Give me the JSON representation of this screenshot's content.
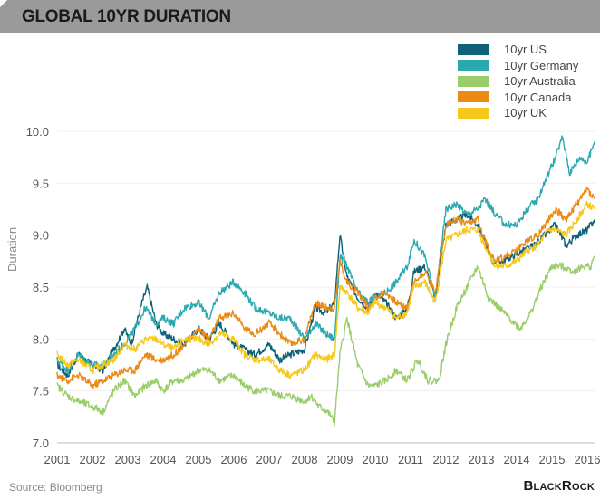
{
  "header": {
    "title": "GLOBAL 10YR DURATION"
  },
  "footer": {
    "source": "Source: Bloomberg",
    "brand": "BlackRock"
  },
  "chart_data": {
    "type": "line",
    "title": "GLOBAL 10YR DURATION",
    "xlabel": "",
    "ylabel": "Duration",
    "xlim": [
      2001,
      2016.2
    ],
    "ylim": [
      7.0,
      10.0
    ],
    "y_ticks": [
      "7.0",
      "7.5",
      "8.0",
      "8.5",
      "9.0",
      "9.5",
      "10.0"
    ],
    "y_tick_values": [
      7.0,
      7.5,
      8.0,
      8.5,
      9.0,
      9.5,
      10.0
    ],
    "x_ticks": [
      "2001",
      "2002",
      "2003",
      "2004",
      "2005",
      "2006",
      "2007",
      "2008",
      "2009",
      "2010",
      "2011",
      "2012",
      "2013",
      "2014",
      "2015",
      "2016"
    ],
    "x_tick_values": [
      2001,
      2002,
      2003,
      2004,
      2005,
      2006,
      2007,
      2008,
      2009,
      2010,
      2011,
      2012,
      2013,
      2014,
      2015,
      2016
    ],
    "grid": true,
    "legend_position": "top-right",
    "series": [
      {
        "name": "10yr US",
        "color": "#0f6178",
        "x": [
          2001,
          2001.3,
          2001.6,
          2002,
          2002.3,
          2002.6,
          2002.9,
          2003.1,
          2003.4,
          2003.55,
          2003.8,
          2004,
          2004.3,
          2004.6,
          2005,
          2005.3,
          2005.6,
          2006,
          2006.3,
          2006.6,
          2007,
          2007.3,
          2007.6,
          2008,
          2008.3,
          2008.6,
          2008.85,
          2009,
          2009.2,
          2009.5,
          2009.8,
          2010,
          2010.3,
          2010.6,
          2010.9,
          2011.1,
          2011.4,
          2011.7,
          2012,
          2012.3,
          2012.6,
          2012.9,
          2013.1,
          2013.3,
          2013.6,
          2013.9,
          2014.2,
          2014.5,
          2014.8,
          2015.1,
          2015.4,
          2015.7,
          2016,
          2016.2
        ],
        "y": [
          7.75,
          7.65,
          7.85,
          7.75,
          7.7,
          7.9,
          8.1,
          7.95,
          8.35,
          8.5,
          8.15,
          8.05,
          8.0,
          7.95,
          8.1,
          8.0,
          8.15,
          7.95,
          7.9,
          7.85,
          7.95,
          7.8,
          7.85,
          7.9,
          8.3,
          8.25,
          8.35,
          9.0,
          8.6,
          8.4,
          8.3,
          8.45,
          8.35,
          8.2,
          8.3,
          8.65,
          8.7,
          8.4,
          9.1,
          9.15,
          9.2,
          9.1,
          8.95,
          8.75,
          8.75,
          8.8,
          8.85,
          8.9,
          9.0,
          9.1,
          8.9,
          9.0,
          9.05,
          9.15
        ]
      },
      {
        "name": "10yr Germany",
        "color": "#2aa9b0",
        "x": [
          2001,
          2001.3,
          2001.6,
          2002,
          2002.3,
          2002.6,
          2002.9,
          2003.2,
          2003.5,
          2003.8,
          2004,
          2004.3,
          2004.6,
          2005,
          2005.3,
          2005.6,
          2006,
          2006.3,
          2006.6,
          2007,
          2007.3,
          2007.6,
          2008,
          2008.3,
          2008.6,
          2008.85,
          2009,
          2009.2,
          2009.5,
          2009.8,
          2010,
          2010.3,
          2010.6,
          2010.9,
          2011.1,
          2011.4,
          2011.7,
          2012,
          2012.3,
          2012.6,
          2012.9,
          2013.1,
          2013.4,
          2013.7,
          2014,
          2014.3,
          2014.6,
          2014.9,
          2015.1,
          2015.3,
          2015.5,
          2015.8,
          2016,
          2016.2
        ],
        "y": [
          7.8,
          7.7,
          7.85,
          7.75,
          7.75,
          7.85,
          7.95,
          8.1,
          8.3,
          8.15,
          8.2,
          8.15,
          8.3,
          8.35,
          8.2,
          8.45,
          8.55,
          8.45,
          8.3,
          8.25,
          8.2,
          8.2,
          8.0,
          8.15,
          8.05,
          8.0,
          8.8,
          8.7,
          8.45,
          8.35,
          8.4,
          8.45,
          8.55,
          8.7,
          8.95,
          8.8,
          8.4,
          9.25,
          9.3,
          9.2,
          9.25,
          9.35,
          9.2,
          9.1,
          9.1,
          9.25,
          9.35,
          9.6,
          9.75,
          9.95,
          9.6,
          9.75,
          9.7,
          9.9
        ]
      },
      {
        "name": "10yr Australia",
        "color": "#9acd6a",
        "x": [
          2001,
          2001.3,
          2001.6,
          2002,
          2002.3,
          2002.6,
          2002.9,
          2003.2,
          2003.5,
          2003.8,
          2004,
          2004.3,
          2004.6,
          2005,
          2005.3,
          2005.6,
          2006,
          2006.3,
          2006.6,
          2007,
          2007.3,
          2007.6,
          2008,
          2008.2,
          2008.4,
          2008.65,
          2008.85,
          2009,
          2009.2,
          2009.5,
          2009.8,
          2010,
          2010.3,
          2010.6,
          2010.9,
          2011.2,
          2011.5,
          2011.8,
          2012,
          2012.3,
          2012.6,
          2012.9,
          2013.2,
          2013.5,
          2013.8,
          2014.1,
          2014.4,
          2014.7,
          2015,
          2015.3,
          2015.6,
          2015.9,
          2016.1,
          2016.2
        ],
        "y": [
          7.55,
          7.45,
          7.4,
          7.35,
          7.3,
          7.5,
          7.6,
          7.45,
          7.55,
          7.6,
          7.5,
          7.6,
          7.6,
          7.7,
          7.7,
          7.6,
          7.65,
          7.55,
          7.5,
          7.5,
          7.45,
          7.45,
          7.4,
          7.45,
          7.35,
          7.3,
          7.2,
          7.85,
          8.2,
          7.75,
          7.55,
          7.55,
          7.6,
          7.7,
          7.6,
          7.8,
          7.6,
          7.6,
          7.95,
          8.3,
          8.5,
          8.7,
          8.4,
          8.3,
          8.2,
          8.1,
          8.25,
          8.5,
          8.7,
          8.7,
          8.65,
          8.7,
          8.7,
          8.8
        ]
      },
      {
        "name": "10yr Canada",
        "color": "#ec8a14",
        "x": [
          2001,
          2001.3,
          2001.6,
          2002,
          2002.3,
          2002.6,
          2002.9,
          2003.2,
          2003.5,
          2003.8,
          2004,
          2004.3,
          2004.6,
          2005,
          2005.3,
          2005.6,
          2006,
          2006.3,
          2006.6,
          2007,
          2007.3,
          2007.6,
          2008,
          2008.3,
          2008.6,
          2008.85,
          2009,
          2009.2,
          2009.5,
          2009.8,
          2010,
          2010.3,
          2010.6,
          2010.9,
          2011.1,
          2011.4,
          2011.7,
          2012,
          2012.3,
          2012.6,
          2012.9,
          2013.1,
          2013.4,
          2013.7,
          2014,
          2014.3,
          2014.6,
          2014.9,
          2015.1,
          2015.4,
          2015.7,
          2016,
          2016.2
        ],
        "y": [
          7.65,
          7.6,
          7.65,
          7.55,
          7.6,
          7.65,
          7.7,
          7.7,
          7.85,
          7.8,
          7.8,
          7.85,
          7.95,
          8.1,
          8.0,
          8.2,
          8.25,
          8.1,
          8.05,
          8.15,
          8.05,
          7.95,
          8.0,
          8.35,
          8.3,
          8.3,
          8.75,
          8.55,
          8.45,
          8.3,
          8.4,
          8.45,
          8.35,
          8.3,
          8.55,
          8.65,
          8.45,
          9.1,
          9.15,
          9.1,
          9.15,
          8.95,
          8.75,
          8.8,
          8.85,
          8.95,
          9.0,
          9.15,
          9.25,
          9.15,
          9.3,
          9.45,
          9.35
        ]
      },
      {
        "name": "10yr UK",
        "color": "#f6c81c",
        "x": [
          2001,
          2001.3,
          2001.6,
          2002,
          2002.3,
          2002.6,
          2002.9,
          2003.2,
          2003.5,
          2003.8,
          2004,
          2004.3,
          2004.6,
          2005,
          2005.3,
          2005.6,
          2006,
          2006.3,
          2006.6,
          2007,
          2007.3,
          2007.6,
          2008,
          2008.3,
          2008.6,
          2008.85,
          2009,
          2009.2,
          2009.5,
          2009.8,
          2010,
          2010.3,
          2010.6,
          2010.9,
          2011.1,
          2011.4,
          2011.7,
          2012,
          2012.3,
          2012.6,
          2012.9,
          2013.1,
          2013.4,
          2013.7,
          2014,
          2014.3,
          2014.6,
          2014.9,
          2015.1,
          2015.4,
          2015.7,
          2016,
          2016.2
        ],
        "y": [
          7.85,
          7.75,
          7.8,
          7.7,
          7.75,
          7.8,
          7.95,
          7.9,
          8.0,
          8.0,
          7.95,
          7.9,
          8.0,
          8.0,
          7.95,
          8.05,
          8.0,
          7.85,
          7.8,
          7.8,
          7.7,
          7.65,
          7.7,
          7.85,
          7.8,
          7.85,
          8.5,
          8.45,
          8.3,
          8.25,
          8.35,
          8.3,
          8.2,
          8.25,
          8.5,
          8.55,
          8.35,
          8.95,
          9.0,
          9.05,
          9.05,
          8.9,
          8.7,
          8.7,
          8.75,
          8.85,
          8.9,
          9.05,
          9.05,
          9.0,
          9.15,
          9.3,
          9.25
        ]
      }
    ]
  }
}
